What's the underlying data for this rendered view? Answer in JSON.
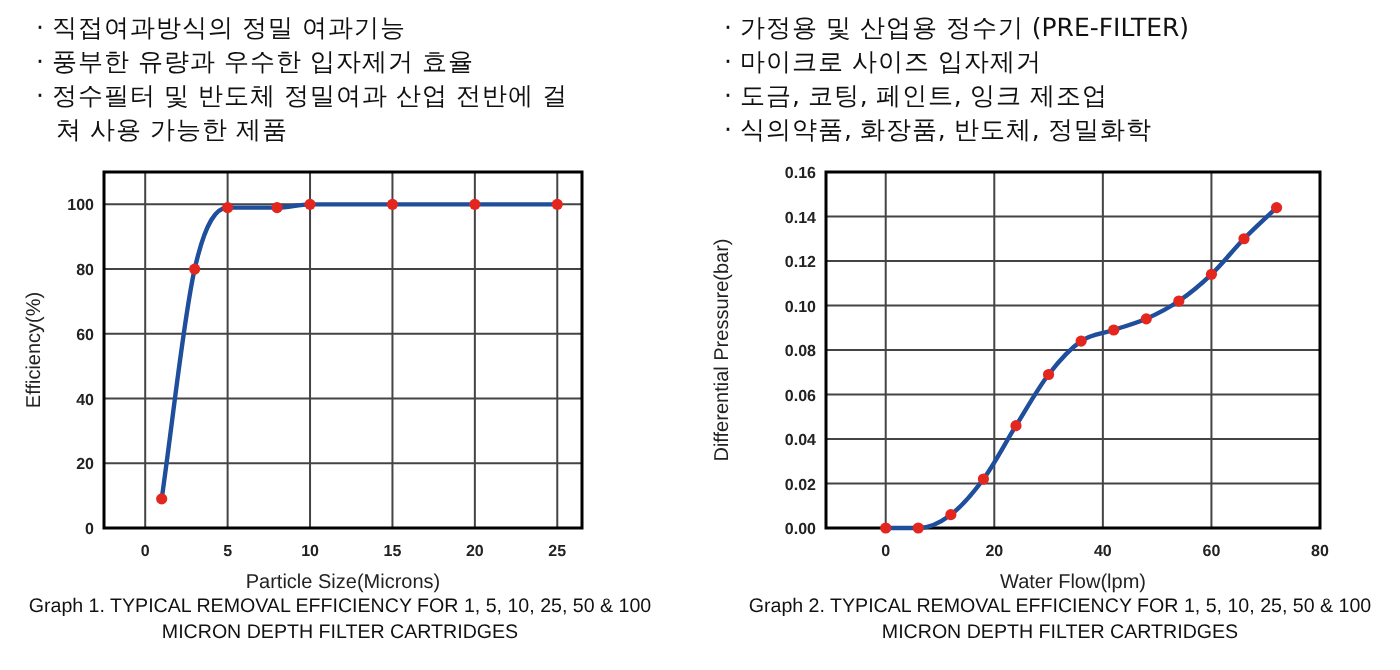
{
  "chart_data": [
    {
      "type": "line",
      "title": "Graph 1. TYPICAL REMOVAL EFFICIENCY FOR 1, 5, 10, 25, 50 & 100 MICRON DEPTH FILTER CARTRIDGES",
      "annotations": [
        "· 직접여과방식의 정밀 여과기능",
        "· 풍부한 유량과 우수한 입자제거 효율",
        "· 정수필터 및 반도체 정밀여과 산업 전반에 걸쳐 사용 가능한 제품"
      ],
      "xlabel": "Particle Size(Microns)",
      "ylabel": "Efficiency(%)",
      "x": [
        1,
        3,
        5,
        8,
        10,
        15,
        20,
        25
      ],
      "series": [
        {
          "color": "#1f4e9c",
          "values": [
            9,
            80,
            99,
            99,
            100,
            100,
            100,
            100
          ]
        }
      ],
      "xlim": [
        -2.5,
        26.5
      ],
      "xticks": [
        0,
        5,
        10,
        15,
        20,
        25
      ],
      "ylim": [
        0,
        110
      ],
      "yticks": [
        0,
        20,
        40,
        60,
        80,
        100
      ],
      "grid": true,
      "marker": "circle",
      "line_style": "solid"
    },
    {
      "type": "line",
      "title": "Graph 2. TYPICAL REMOVAL EFFICIENCY FOR 1, 5, 10, 25, 50 & 100 MICRON DEPTH FILTER CARTRIDGES",
      "annotations": [
        "· 가정용 및 산업용 정수기 (PRE-FILTER)",
        "· 마이크로 사이즈 입자제거",
        "· 도금, 코팅, 페인트, 잉크 제조업",
        "· 식의약품, 화장품, 반도체, 정밀화학"
      ],
      "xlabel": "Water Flow(lpm)",
      "ylabel": "Differential Pressure(bar)",
      "x": [
        0,
        6,
        12,
        18,
        24,
        30,
        36,
        42,
        48,
        54,
        60,
        66,
        72
      ],
      "series": [
        {
          "color": "#1f4e9c",
          "values": [
            0,
            0,
            0.006,
            0.022,
            0.046,
            0.069,
            0.084,
            0.089,
            0.094,
            0.102,
            0.114,
            0.13,
            0.144
          ]
        }
      ],
      "xlim": [
        -11,
        80
      ],
      "xticks": [
        0,
        20,
        40,
        60,
        80
      ],
      "ylim": [
        0,
        0.16
      ],
      "yticks": [
        {
          "value": 0,
          "label": "0.00"
        },
        {
          "value": 0.02,
          "label": "0.02"
        },
        {
          "value": 0.04,
          "label": "0.04"
        },
        {
          "value": 0.06,
          "label": "0.06"
        },
        {
          "value": 0.08,
          "label": "0.08"
        },
        {
          "value": 0.1,
          "label": "0.10"
        },
        {
          "value": 0.12,
          "label": "0.12"
        },
        {
          "value": 0.14,
          "label": "0.14"
        },
        {
          "value": 0.16,
          "label": "0.16"
        }
      ],
      "grid": true,
      "marker": "circle",
      "line_style": "solid"
    }
  ]
}
